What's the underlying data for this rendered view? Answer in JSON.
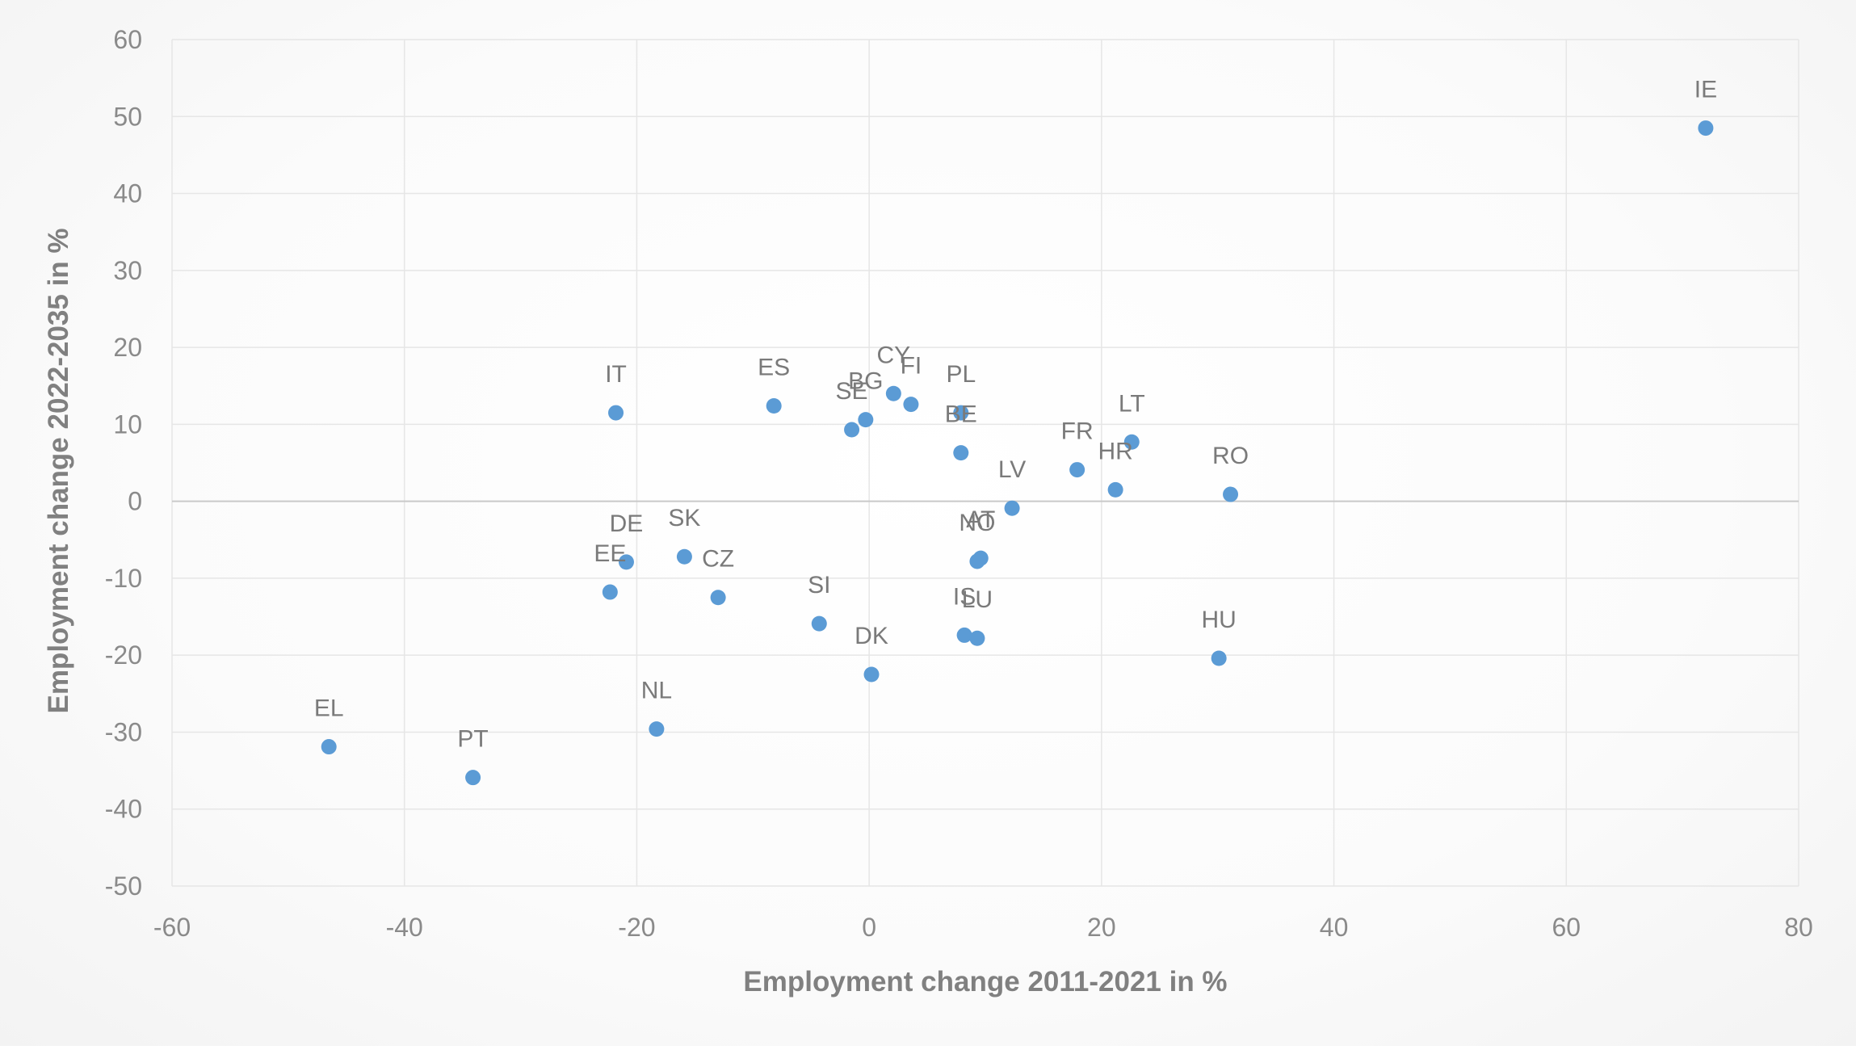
{
  "chart_data": {
    "type": "scatter",
    "xlabel": "Employment change 2011-2021 in %",
    "ylabel": "Employment change 2022-2035 in %",
    "xlim": [
      -60,
      80
    ],
    "ylim": [
      -50,
      60
    ],
    "x_ticks": [
      -60,
      -40,
      -20,
      0,
      20,
      40,
      60,
      80
    ],
    "y_ticks": [
      -50,
      -40,
      -30,
      -20,
      -10,
      0,
      10,
      20,
      30,
      40,
      50,
      60
    ],
    "grid": true,
    "legend": "none",
    "marker_color": "#5b9bd5",
    "points": [
      {
        "label": "IE",
        "x": 72.0,
        "y": 48.5
      },
      {
        "label": "IT",
        "x": -21.8,
        "y": 11.5
      },
      {
        "label": "ES",
        "x": -8.2,
        "y": 12.4
      },
      {
        "label": "CY",
        "x": 2.1,
        "y": 14.0
      },
      {
        "label": "FI",
        "x": 3.6,
        "y": 12.6
      },
      {
        "label": "BG",
        "x": -0.3,
        "y": 10.6
      },
      {
        "label": "SE",
        "x": -1.5,
        "y": 9.3
      },
      {
        "label": "PL",
        "x": 7.9,
        "y": 11.5
      },
      {
        "label": "BE",
        "x": 7.9,
        "y": 6.3
      },
      {
        "label": "LT",
        "x": 22.6,
        "y": 7.7
      },
      {
        "label": "FR",
        "x": 17.9,
        "y": 4.1
      },
      {
        "label": "HR",
        "x": 21.2,
        "y": 1.5
      },
      {
        "label": "RO",
        "x": 31.1,
        "y": 0.9
      },
      {
        "label": "LV",
        "x": 12.3,
        "y": -0.9
      },
      {
        "label": "AT",
        "x": 9.6,
        "y": -7.4
      },
      {
        "label": "NO",
        "x": 9.3,
        "y": -7.8
      },
      {
        "label": "DE",
        "x": -20.9,
        "y": -7.9
      },
      {
        "label": "SK",
        "x": -15.9,
        "y": -7.2
      },
      {
        "label": "CZ",
        "x": -13.0,
        "y": -12.5
      },
      {
        "label": "EE",
        "x": -22.3,
        "y": -11.8
      },
      {
        "label": "SI",
        "x": -4.3,
        "y": -15.9
      },
      {
        "label": "IS",
        "x": 8.2,
        "y": -17.4
      },
      {
        "label": "LU",
        "x": 9.3,
        "y": -17.8
      },
      {
        "label": "HU",
        "x": 30.1,
        "y": -20.4
      },
      {
        "label": "DK",
        "x": 0.2,
        "y": -22.5
      },
      {
        "label": "NL",
        "x": -18.3,
        "y": -29.6
      },
      {
        "label": "EL",
        "x": -46.5,
        "y": -31.9
      },
      {
        "label": "PT",
        "x": -34.1,
        "y": -35.9
      }
    ]
  }
}
